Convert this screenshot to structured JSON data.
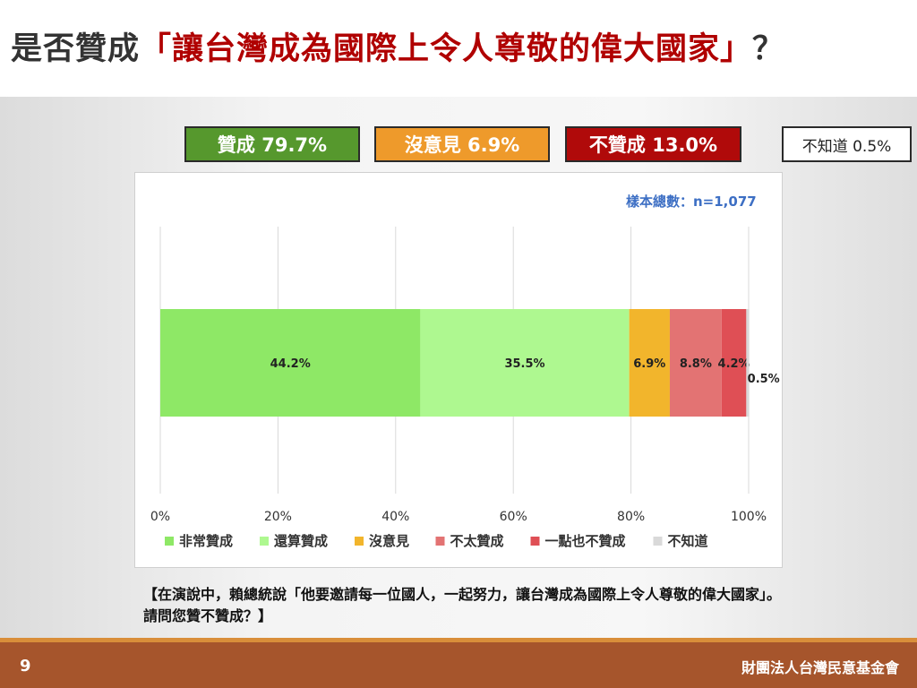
{
  "title": {
    "main": "是否贊成",
    "highlight": "「讓台灣成為國際上令人尊敬的偉大國家」",
    "end": "？"
  },
  "summary": {
    "agree": "贊成 79.7%",
    "neutral": "沒意見 6.9%",
    "disagree": "不贊成 13.0%",
    "unknown": "不知道 0.5%"
  },
  "sample_note": "樣本總數：n=1,077",
  "question": "【在演說中，賴總統說「他要邀請每一位國人，一起努力，讓台灣成為國際上令人尊敬的偉大國家」。請問您贊不贊成？】",
  "footer": {
    "page": "9",
    "org": "財團法人台灣民意基金會"
  },
  "chart_data": {
    "type": "bar",
    "orientation": "horizontal-stacked-100",
    "categories": [
      "是否贊成"
    ],
    "series": [
      {
        "name": "非常贊成",
        "values": [
          44.2
        ],
        "label": "44.2%",
        "color": "#8ee866"
      },
      {
        "name": "還算贊成",
        "values": [
          35.5
        ],
        "label": "35.5%",
        "color": "#aef890"
      },
      {
        "name": "沒意見",
        "values": [
          6.9
        ],
        "label": "6.9%",
        "color": "#f2b52c"
      },
      {
        "name": "不太贊成",
        "values": [
          8.8
        ],
        "label": "8.8%",
        "color": "#e37373"
      },
      {
        "name": "一點也不贊成",
        "values": [
          4.2
        ],
        "label": "4.2%",
        "color": "#df4f55"
      },
      {
        "name": "不知道",
        "values": [
          0.5
        ],
        "label": "0.5%",
        "color": "#d9d9d9"
      }
    ],
    "xlim": [
      0,
      100
    ],
    "xticks": [
      "0%",
      "20%",
      "40%",
      "60%",
      "80%",
      "100%"
    ],
    "grid": true,
    "legend": "bottom"
  }
}
